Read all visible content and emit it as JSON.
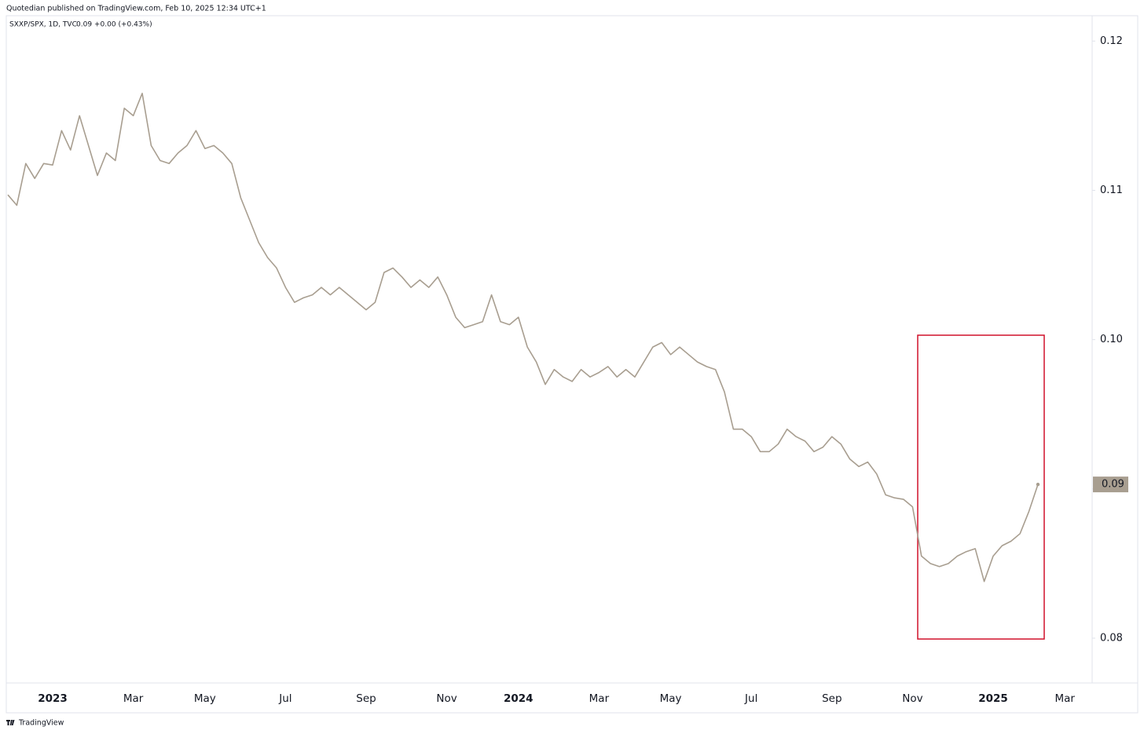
{
  "header": {
    "publisher": "Quotedian published on TradingView.com, Feb 10, 2025 12:34 UTC+1"
  },
  "footer": {
    "brand": "TradingView"
  },
  "chart_data": {
    "type": "line",
    "symbol": "SXXP/SPX, 1D, TVC",
    "last": "0.09",
    "change": "+0.00 (+0.43%)",
    "price_label": "0.09",
    "color": "#a89e90",
    "categories": [
      null,
      null,
      null,
      null,
      null,
      "2023",
      null,
      null,
      null,
      null,
      null,
      null,
      null,
      null,
      "Mar",
      null,
      null,
      null,
      null,
      null,
      null,
      null,
      "May",
      null,
      null,
      null,
      null,
      null,
      null,
      null,
      null,
      "Jul",
      null,
      null,
      null,
      null,
      null,
      null,
      null,
      null,
      "Sep",
      null,
      null,
      null,
      null,
      null,
      null,
      null,
      null,
      "Nov",
      null,
      null,
      null,
      null,
      null,
      null,
      null,
      "2024",
      null,
      null,
      null,
      null,
      null,
      null,
      null,
      null,
      "Mar",
      null,
      null,
      null,
      null,
      null,
      null,
      null,
      "May",
      null,
      null,
      null,
      null,
      null,
      null,
      null,
      null,
      "Jul",
      null,
      null,
      null,
      null,
      null,
      null,
      null,
      null,
      "Sep",
      null,
      null,
      null,
      null,
      null,
      null,
      null,
      null,
      "Nov",
      null,
      null,
      null,
      null,
      null,
      null,
      null,
      null,
      "2025",
      null,
      null,
      null,
      null,
      null,
      null,
      null,
      "Mar",
      null
    ],
    "values": [
      0.1097,
      0.109,
      0.1118,
      0.1108,
      0.1118,
      0.1117,
      0.114,
      0.1127,
      0.115,
      0.113,
      0.111,
      0.1125,
      0.112,
      0.1155,
      0.115,
      0.1165,
      0.113,
      0.112,
      0.1118,
      0.1125,
      0.113,
      0.114,
      0.1128,
      0.113,
      0.1125,
      0.1118,
      0.1095,
      0.108,
      0.1065,
      0.1055,
      0.1048,
      0.1035,
      0.1025,
      0.1028,
      0.103,
      0.1035,
      0.103,
      0.1035,
      0.103,
      0.1025,
      0.102,
      0.1025,
      0.1045,
      0.1048,
      0.1042,
      0.1035,
      0.104,
      0.1035,
      0.1042,
      0.103,
      0.1015,
      0.1008,
      0.101,
      0.1012,
      0.103,
      0.1012,
      0.101,
      0.1015,
      0.0995,
      0.0985,
      0.097,
      0.098,
      0.0975,
      0.0972,
      0.098,
      0.0975,
      0.0978,
      0.0982,
      0.0975,
      0.098,
      0.0975,
      0.0985,
      0.0995,
      0.0998,
      0.099,
      0.0995,
      0.099,
      0.0985,
      0.0982,
      0.098,
      0.0965,
      0.094,
      0.094,
      0.0935,
      0.0925,
      0.0925,
      0.093,
      0.094,
      0.0935,
      0.0932,
      0.0925,
      0.0928,
      0.0935,
      0.093,
      0.092,
      0.0915,
      0.0918,
      0.091,
      0.0896,
      0.0894,
      0.0893,
      0.0888,
      0.0855,
      0.085,
      0.0848,
      0.085,
      0.0855,
      0.0858,
      0.086,
      0.0838,
      0.0855,
      0.0862,
      0.0865,
      0.087,
      0.0885,
      0.0903,
      null,
      null,
      null,
      null
    ],
    "bold_categories": [
      "2023",
      "2024",
      "2025"
    ],
    "ylim": [
      0.077,
      0.1217
    ],
    "yticks": [
      0.08,
      0.09,
      {
        "value": 0.1,
        "label": "0.10"
      },
      0.11,
      0.12
    ]
  }
}
